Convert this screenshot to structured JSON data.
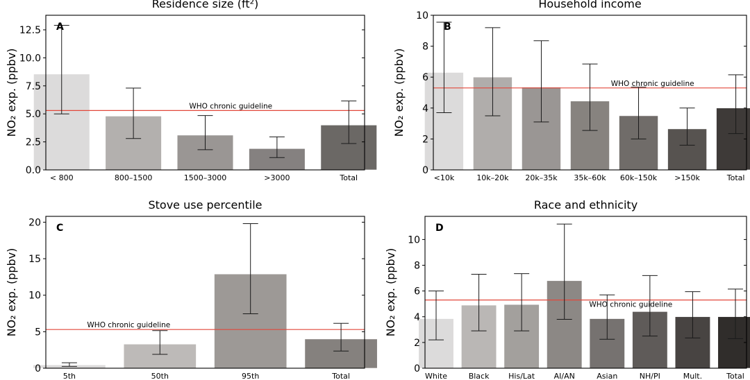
{
  "figure": {
    "guideline_color": "#e2473a",
    "bar_edge_color": "#ffffff"
  },
  "chart_data": [
    {
      "type": "bar",
      "panel_label": "A",
      "title": "Residence size (ft²)",
      "ylabel": "NO₂ exp. (ppbv)",
      "categories": [
        "< 800",
        "800–1500",
        "1500–3000",
        ">3000",
        "Total"
      ],
      "values": [
        8.55,
        4.8,
        3.1,
        1.9,
        4.0
      ],
      "error_low": [
        5.0,
        2.8,
        1.8,
        1.1,
        2.35
      ],
      "error_high": [
        12.9,
        7.3,
        4.85,
        2.95,
        6.15
      ],
      "colors": [
        "#dcdbdb",
        "#b3b0ae",
        "#9a9694",
        "#858180",
        "#6b6865"
      ],
      "ylim": [
        0,
        13.8
      ],
      "yticks": [
        0,
        2.5,
        5,
        7.5,
        10,
        12.5
      ],
      "ytick_labels": [
        "0.0",
        "2.5",
        "5.0",
        "7.5",
        "10.0",
        "12.5"
      ],
      "guideline": {
        "value": 5.3,
        "label": "WHO chronic guideline"
      }
    },
    {
      "type": "bar",
      "panel_label": "B",
      "title": "Household income",
      "ylabel": "NO₂ exp. (ppbv)",
      "categories": [
        "<10k",
        "10k–20k",
        "20k–35k",
        "35k–60k",
        "60k–150k",
        ">150k",
        "Total"
      ],
      "values": [
        6.3,
        6.0,
        5.35,
        4.45,
        3.5,
        2.65,
        4.0
      ],
      "error_low": [
        3.7,
        3.5,
        3.1,
        2.55,
        2.0,
        1.6,
        2.35
      ],
      "error_high": [
        9.55,
        9.2,
        8.35,
        6.85,
        5.35,
        4.0,
        6.15
      ],
      "colors": [
        "#dcdbdb",
        "#b0adab",
        "#9a9694",
        "#87837f",
        "#706c69",
        "#575350",
        "#3e3a38"
      ],
      "ylim": [
        0,
        10
      ],
      "yticks": [
        0,
        2,
        4,
        6,
        8,
        10
      ],
      "ytick_labels": [
        "0",
        "2",
        "4",
        "6",
        "8",
        "10"
      ],
      "guideline": {
        "value": 5.3,
        "label": "WHO chronic guideline"
      }
    },
    {
      "type": "bar",
      "panel_label": "C",
      "title": "Stove use percentile",
      "ylabel": "NO₂ exp. (ppbv)",
      "categories": [
        "5th",
        "50th",
        "95th",
        "Total"
      ],
      "values": [
        0.45,
        3.3,
        12.9,
        4.0
      ],
      "error_low": [
        0.25,
        1.9,
        7.45,
        2.35
      ],
      "error_high": [
        0.75,
        5.15,
        19.8,
        6.15
      ],
      "colors": [
        "#dcdbdb",
        "#bdbab8",
        "#9d9996",
        "#85817e"
      ],
      "ylim": [
        0,
        20.8
      ],
      "yticks": [
        0,
        5,
        10,
        15,
        20
      ],
      "ytick_labels": [
        "0",
        "5",
        "10",
        "15",
        "20"
      ],
      "guideline": {
        "value": 5.3,
        "label": "WHO chronic guideline"
      }
    },
    {
      "type": "bar",
      "panel_label": "D",
      "title": "Race and ethnicity",
      "ylabel": "NO₂ exp. (ppbv)",
      "categories": [
        "White",
        "Black",
        "His/Lat",
        "AI/AN",
        "Asian",
        "NH/PI",
        "Mult.",
        "Total"
      ],
      "values": [
        3.85,
        4.9,
        4.95,
        6.8,
        3.85,
        4.4,
        4.0,
        4.0
      ],
      "error_low": [
        2.2,
        2.9,
        2.9,
        3.8,
        2.25,
        2.5,
        2.35,
        2.3
      ],
      "error_high": [
        6.0,
        7.3,
        7.35,
        11.2,
        5.7,
        7.2,
        5.95,
        6.15
      ],
      "colors": [
        "#dcdbdb",
        "#bab7b5",
        "#a3a09d",
        "#8c8885",
        "#767270",
        "#5f5b59",
        "#484442",
        "#302d2b"
      ],
      "ylim": [
        0,
        11.8
      ],
      "yticks": [
        0,
        2,
        4,
        6,
        8,
        10
      ],
      "ytick_labels": [
        "0",
        "2",
        "4",
        "6",
        "8",
        "10"
      ],
      "guideline": {
        "value": 5.3,
        "label": "WHO chronic guideline"
      }
    }
  ]
}
